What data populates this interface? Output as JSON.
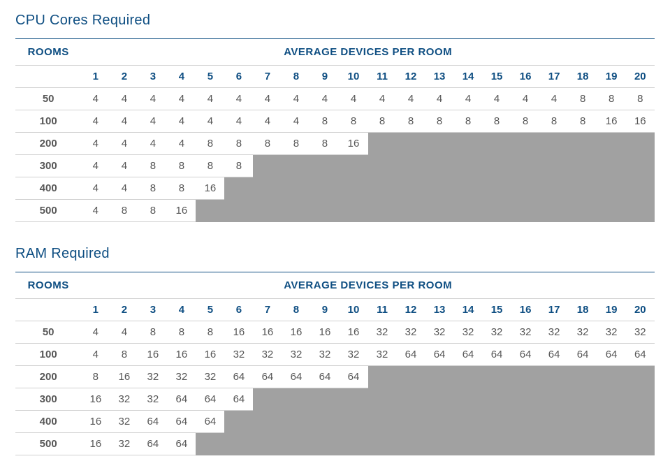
{
  "colors": {
    "heading": "#0e4e82",
    "text": "#575757",
    "na_cell_bg": "#a1a1a1",
    "row_border": "#d0d0d0",
    "top_rule": "#0e4e82",
    "background": "#ffffff"
  },
  "typography": {
    "section_title_fontsize": 20,
    "header_fontsize": 15,
    "body_fontsize": 15,
    "font_family": "Arial"
  },
  "column_headers": {
    "rooms": "ROOMS",
    "spanning": "AVERAGE DEVICES PER ROOM",
    "devices": [
      "1",
      "2",
      "3",
      "4",
      "5",
      "6",
      "7",
      "8",
      "9",
      "10",
      "11",
      "12",
      "13",
      "14",
      "15",
      "16",
      "17",
      "18",
      "19",
      "20"
    ]
  },
  "row_labels": [
    "50",
    "100",
    "200",
    "300",
    "400",
    "500"
  ],
  "tables": [
    {
      "title": "CPU Cores Required",
      "rows": [
        [
          "4",
          "4",
          "4",
          "4",
          "4",
          "4",
          "4",
          "4",
          "4",
          "4",
          "4",
          "4",
          "4",
          "4",
          "4",
          "4",
          "4",
          "8",
          "8",
          "8"
        ],
        [
          "4",
          "4",
          "4",
          "4",
          "4",
          "4",
          "4",
          "4",
          "8",
          "8",
          "8",
          "8",
          "8",
          "8",
          "8",
          "8",
          "8",
          "8",
          "16",
          "16"
        ],
        [
          "4",
          "4",
          "4",
          "4",
          "8",
          "8",
          "8",
          "8",
          "8",
          "16",
          null,
          null,
          null,
          null,
          null,
          null,
          null,
          null,
          null,
          null
        ],
        [
          "4",
          "4",
          "8",
          "8",
          "8",
          "8",
          null,
          null,
          null,
          null,
          null,
          null,
          null,
          null,
          null,
          null,
          null,
          null,
          null,
          null
        ],
        [
          "4",
          "4",
          "8",
          "8",
          "16",
          null,
          null,
          null,
          null,
          null,
          null,
          null,
          null,
          null,
          null,
          null,
          null,
          null,
          null,
          null
        ],
        [
          "4",
          "8",
          "8",
          "16",
          null,
          null,
          null,
          null,
          null,
          null,
          null,
          null,
          null,
          null,
          null,
          null,
          null,
          null,
          null,
          null
        ]
      ]
    },
    {
      "title": "RAM Required",
      "rows": [
        [
          "4",
          "4",
          "8",
          "8",
          "8",
          "16",
          "16",
          "16",
          "16",
          "16",
          "32",
          "32",
          "32",
          "32",
          "32",
          "32",
          "32",
          "32",
          "32",
          "32"
        ],
        [
          "4",
          "8",
          "16",
          "16",
          "16",
          "32",
          "32",
          "32",
          "32",
          "32",
          "32",
          "64",
          "64",
          "64",
          "64",
          "64",
          "64",
          "64",
          "64",
          "64"
        ],
        [
          "8",
          "16",
          "32",
          "32",
          "32",
          "64",
          "64",
          "64",
          "64",
          "64",
          null,
          null,
          null,
          null,
          null,
          null,
          null,
          null,
          null,
          null
        ],
        [
          "16",
          "32",
          "32",
          "64",
          "64",
          "64",
          null,
          null,
          null,
          null,
          null,
          null,
          null,
          null,
          null,
          null,
          null,
          null,
          null,
          null
        ],
        [
          "16",
          "32",
          "64",
          "64",
          "64",
          null,
          null,
          null,
          null,
          null,
          null,
          null,
          null,
          null,
          null,
          null,
          null,
          null,
          null,
          null
        ],
        [
          "16",
          "32",
          "64",
          "64",
          null,
          null,
          null,
          null,
          null,
          null,
          null,
          null,
          null,
          null,
          null,
          null,
          null,
          null,
          null,
          null
        ]
      ]
    }
  ]
}
